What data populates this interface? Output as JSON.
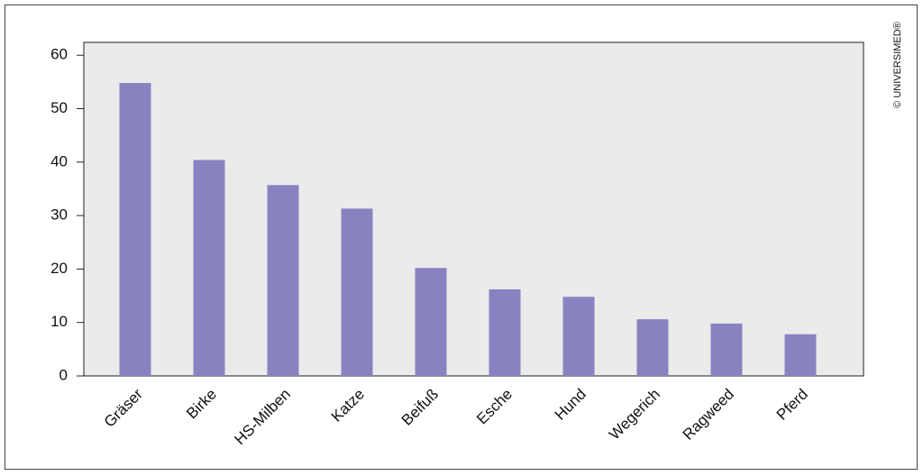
{
  "chart_data": {
    "type": "bar",
    "categories": [
      "Gräser",
      "Birke",
      "HS-Milben",
      "Katze",
      "Beifuß",
      "Esche",
      "Hund",
      "Wegerich",
      "Ragweed",
      "Pferd"
    ],
    "values": [
      54.8,
      40.4,
      35.7,
      31.3,
      20.2,
      16.2,
      14.8,
      10.6,
      9.8,
      7.8
    ],
    "color": "#8883c0",
    "ylim": [
      0,
      62.4
    ],
    "yticks": [
      0,
      10,
      20,
      30,
      40,
      50,
      60
    ],
    "plot_background": "#ebebeb",
    "copyright": "© UNIVERSIMED®"
  }
}
